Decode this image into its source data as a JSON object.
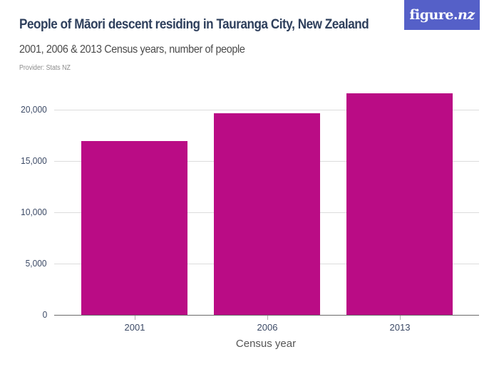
{
  "header": {
    "title": "People of Māori descent residing in Tauranga City, New Zealand",
    "subtitle": "2001, 2006 & 2013 Census years, number of people",
    "provider": "Provider: Stats NZ",
    "logo": {
      "text_main": "figure.",
      "text_accent": "nz",
      "background": "#5560c8"
    }
  },
  "colors": {
    "bar": "#ba0c85",
    "gridline": "#dcdcdc",
    "axis": "#6b6b6b",
    "tick_label": "#3c4a66"
  },
  "chart_data": {
    "type": "bar",
    "title": "People of Māori descent residing in Tauranga City, New Zealand",
    "subtitle": "2001, 2006 & 2013 Census years, number of people",
    "categories": [
      "2001",
      "2006",
      "2013"
    ],
    "values": [
      16950,
      19650,
      21600
    ],
    "xlabel": "Census year",
    "ylabel": "",
    "ylim": [
      0,
      20000
    ],
    "yticks": [
      0,
      5000,
      10000,
      15000,
      20000
    ],
    "ytick_labels": [
      "0",
      "5,000",
      "10,000",
      "15,000",
      "20,000"
    ],
    "grid": true,
    "legend": null,
    "source": "Provider: Stats NZ"
  }
}
